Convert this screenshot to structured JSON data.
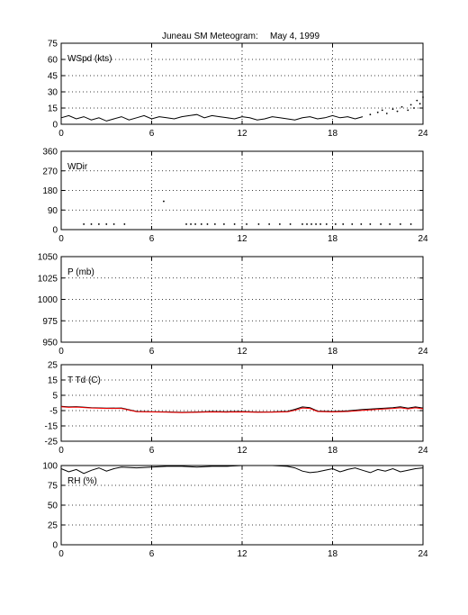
{
  "title_station": "Juneau SM Meteogram:",
  "title_date": "May  4, 1999",
  "chart_data": [
    {
      "type": "scatter",
      "label": "WSpd (kts)",
      "xlim": [
        0,
        24
      ],
      "ylim": [
        0,
        75
      ],
      "xticks": [
        0,
        6,
        12,
        18,
        24
      ],
      "yticks": [
        0,
        15,
        30,
        45,
        60,
        75
      ],
      "grid": true,
      "series": [
        {
          "color": "#000000",
          "style": "line",
          "x": [
            0,
            0.5,
            1,
            1.5,
            2,
            2.5,
            3,
            3.5,
            4,
            4.5,
            5,
            5.5,
            6,
            6.5,
            7,
            7.5,
            8,
            8.5,
            9,
            9.5,
            10,
            10.5,
            11,
            11.5,
            12,
            12.5,
            13,
            13.5,
            14,
            14.5,
            15,
            15.5,
            16,
            16.5,
            17,
            17.5,
            18,
            18.5,
            19,
            19.5,
            20
          ],
          "y": [
            6,
            8,
            5,
            7,
            4,
            6,
            3,
            5,
            7,
            4,
            6,
            8,
            5,
            7,
            6,
            5,
            7,
            8,
            9,
            6,
            8,
            7,
            6,
            5,
            7,
            6,
            4,
            5,
            7,
            6,
            5,
            4,
            6,
            7,
            5,
            6,
            8,
            6,
            7,
            5,
            7
          ]
        },
        {
          "color": "#000000",
          "style": "dots",
          "x": [
            20.5,
            21,
            21.3,
            21.6,
            22,
            22.3,
            22.6,
            23,
            23.2,
            23.4,
            23.6,
            23.8,
            24
          ],
          "y": [
            9,
            11,
            13,
            10,
            14,
            12,
            16,
            13,
            18,
            15,
            22,
            19,
            25
          ]
        }
      ]
    },
    {
      "type": "scatter",
      "label": "WDir",
      "xlim": [
        0,
        24
      ],
      "ylim": [
        0,
        360
      ],
      "xticks": [
        0,
        6,
        12,
        18,
        24
      ],
      "yticks": [
        0,
        90,
        180,
        270,
        360
      ],
      "grid": true,
      "series": [
        {
          "color": "#000000",
          "style": "dots",
          "x": [
            1.5,
            2,
            2.5,
            3,
            3.5,
            4.2,
            6.8,
            8.3,
            8.6,
            8.9,
            9.3,
            9.7,
            10.2,
            10.8,
            11.5,
            12.3,
            13.1,
            13.8,
            14.5,
            15.2,
            16,
            16.3,
            16.6,
            16.9,
            17.2,
            17.6,
            18.2,
            18.7,
            19.3,
            19.9,
            20.5,
            21.2,
            21.8,
            22.5,
            23.2
          ],
          "y": [
            25,
            25,
            25,
            25,
            25,
            25,
            130,
            25,
            25,
            25,
            25,
            25,
            25,
            25,
            25,
            25,
            25,
            25,
            25,
            25,
            25,
            25,
            25,
            25,
            25,
            25,
            25,
            25,
            25,
            25,
            25,
            25,
            25,
            25,
            25
          ]
        }
      ]
    },
    {
      "type": "line",
      "label": "P (mb)",
      "xlim": [
        0,
        24
      ],
      "ylim": [
        950,
        1050
      ],
      "xticks": [
        0,
        6,
        12,
        18,
        24
      ],
      "yticks": [
        950,
        975,
        1000,
        1025,
        1050
      ],
      "grid": true,
      "series": []
    },
    {
      "type": "line",
      "label": "T Td (C)",
      "xlim": [
        0,
        24
      ],
      "ylim": [
        -25,
        25
      ],
      "xticks": [
        0,
        6,
        12,
        18,
        24
      ],
      "yticks": [
        -25,
        -15,
        -5,
        5,
        15,
        25
      ],
      "grid": true,
      "series": [
        {
          "color": "#000000",
          "style": "line",
          "x": [
            0,
            0.5,
            1,
            2,
            3,
            4,
            5,
            6,
            7,
            8,
            9,
            10,
            11,
            12,
            13,
            14,
            15,
            15.5,
            16,
            16.5,
            17,
            18,
            19,
            20,
            21,
            22,
            22.5,
            23,
            23.5,
            24
          ],
          "y": [
            -2.2,
            -2.6,
            -2.4,
            -3.1,
            -3.4,
            -3.3,
            -5.5,
            -5.7,
            -5.8,
            -6.1,
            -5.9,
            -5.6,
            -5.7,
            -5.6,
            -5.9,
            -5.8,
            -5.5,
            -4.2,
            -2.6,
            -3.1,
            -5.3,
            -5.6,
            -5.2,
            -4.3,
            -3.7,
            -3.1,
            -2.5,
            -3.4,
            -2.6,
            -3.3
          ]
        },
        {
          "color": "#ff0000",
          "style": "line",
          "x": [
            0,
            0.5,
            1,
            2,
            3,
            4,
            5,
            6,
            7,
            8,
            9,
            10,
            11,
            12,
            13,
            14,
            15,
            15.5,
            16,
            16.5,
            17,
            18,
            19,
            20,
            21,
            22,
            22.5,
            23,
            23.5,
            24
          ],
          "y": [
            -2.5,
            -2.9,
            -2.7,
            -3.3,
            -3.6,
            -3.6,
            -5.7,
            -5.9,
            -6,
            -6.3,
            -6.1,
            -5.9,
            -6,
            -5.9,
            -6.1,
            -6,
            -5.8,
            -4.8,
            -3.3,
            -3.6,
            -5.6,
            -5.9,
            -5.6,
            -4.9,
            -4.2,
            -3.6,
            -3.2,
            -3.9,
            -3.2,
            -3.8
          ]
        }
      ]
    },
    {
      "type": "line",
      "label": "RH (%)",
      "xlim": [
        0,
        24
      ],
      "ylim": [
        0,
        100
      ],
      "xticks": [
        0,
        6,
        12,
        18,
        24
      ],
      "yticks": [
        0,
        25,
        50,
        75,
        100
      ],
      "grid": true,
      "series": [
        {
          "color": "#000000",
          "style": "line",
          "x": [
            0,
            0.5,
            1,
            1.5,
            2,
            2.5,
            3,
            3.5,
            4,
            5,
            6,
            7,
            8,
            9,
            10,
            11,
            12,
            13,
            14,
            15,
            15.5,
            16,
            16.5,
            17,
            17.5,
            18,
            18.5,
            19,
            19.5,
            20,
            20.5,
            21,
            21.5,
            22,
            22.5,
            23,
            23.5,
            24
          ],
          "y": [
            96,
            92,
            95,
            90,
            94,
            97,
            93,
            96,
            98,
            97,
            98,
            99,
            99,
            98,
            99,
            99,
            100,
            100,
            100,
            99,
            97,
            93,
            91,
            92,
            94,
            96,
            92,
            95,
            97,
            94,
            91,
            95,
            93,
            96,
            92,
            94,
            96,
            97
          ]
        }
      ]
    }
  ]
}
